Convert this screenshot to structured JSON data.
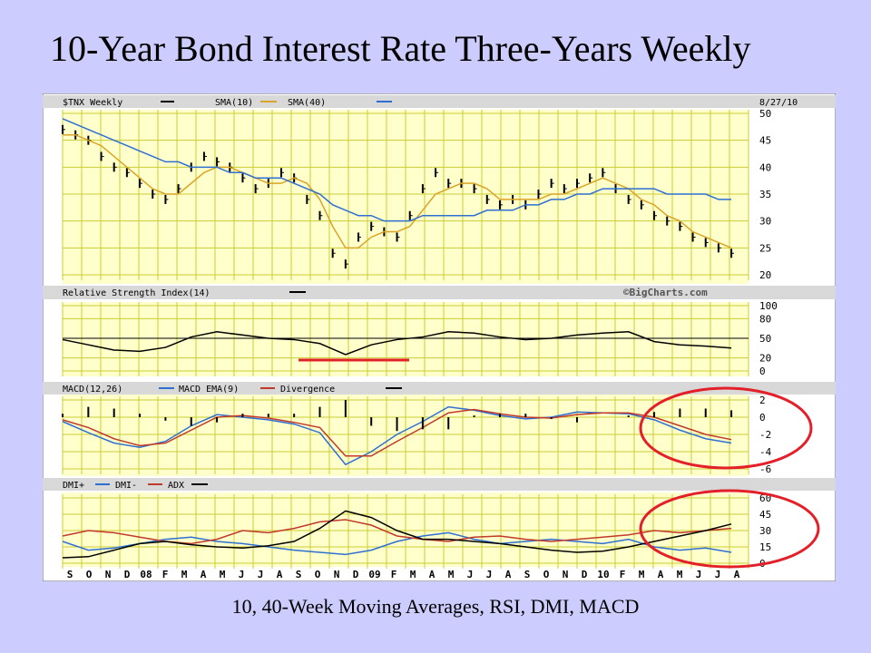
{
  "slide": {
    "title": "10-Year Bond Interest Rate Three-Years Weekly",
    "caption": "10, 40-Week Moving Averages, RSI, DMI, MACD"
  },
  "colors": {
    "slide_bg": "#ccccff",
    "panel_bg": "#ffffcc",
    "header_bg": "#d8d8d8",
    "grid": "#cccc33",
    "sma10": "#d9a427",
    "sma40": "#2e6fd1",
    "emphasis": "#e3202a"
  },
  "chart_data": [
    {
      "type": "line",
      "title": "$TNX Weekly",
      "legend": [
        {
          "name": "$TNX Weekly",
          "color": "#000000"
        },
        {
          "name": "SMA(10)",
          "color": "#d9a427"
        },
        {
          "name": "SMA(40)",
          "color": "#2e6fd1"
        }
      ],
      "date_label": "8/27/10",
      "ylim": [
        20,
        50
      ],
      "yticks": [
        50,
        45,
        40,
        35,
        30,
        25,
        20
      ],
      "grid": true,
      "series": [
        {
          "name": "$TNX Weekly",
          "x": [
            0,
            3,
            6,
            9,
            12,
            15,
            18,
            21,
            24,
            27,
            30,
            33,
            36,
            39,
            42,
            45,
            48,
            51,
            54,
            57,
            60,
            63,
            66,
            69,
            72,
            75,
            78,
            81,
            84,
            87,
            90,
            93,
            96,
            99,
            102,
            105,
            108,
            111,
            114,
            117,
            120,
            123,
            126,
            129,
            132,
            135,
            138,
            141,
            144,
            147,
            150,
            153,
            156
          ],
          "values": [
            47,
            46,
            45,
            42,
            40,
            39,
            37,
            35,
            34,
            36,
            40,
            42,
            41,
            40,
            38,
            36,
            37,
            39,
            38,
            34,
            31,
            24,
            22,
            27,
            29,
            28,
            27,
            31,
            36,
            39,
            37,
            37,
            36,
            34,
            33,
            34,
            33,
            35,
            37,
            36,
            37,
            38,
            39,
            36,
            34,
            33,
            31,
            30,
            29,
            27,
            26,
            25,
            24
          ]
        },
        {
          "name": "SMA(10)",
          "x": [
            0,
            3,
            6,
            9,
            12,
            15,
            18,
            21,
            24,
            27,
            30,
            33,
            36,
            39,
            42,
            45,
            48,
            51,
            54,
            57,
            60,
            63,
            66,
            69,
            72,
            75,
            78,
            81,
            84,
            87,
            90,
            93,
            96,
            99,
            102,
            105,
            108,
            111,
            114,
            117,
            120,
            123,
            126,
            129,
            132,
            135,
            138,
            141,
            144,
            147,
            150,
            153,
            156
          ],
          "values": [
            46,
            46,
            45,
            44,
            42,
            40,
            38,
            36,
            35,
            35,
            37,
            39,
            40,
            40,
            39,
            38,
            37,
            37,
            38,
            37,
            34,
            29,
            25,
            25,
            27,
            28,
            28,
            29,
            32,
            35,
            36,
            37,
            37,
            36,
            34,
            34,
            34,
            34,
            35,
            35,
            36,
            37,
            38,
            37,
            36,
            34,
            33,
            31,
            30,
            28,
            27,
            26,
            25
          ]
        },
        {
          "name": "SMA(40)",
          "x": [
            0,
            3,
            6,
            9,
            12,
            15,
            18,
            21,
            24,
            27,
            30,
            33,
            36,
            39,
            42,
            45,
            48,
            51,
            54,
            57,
            60,
            63,
            66,
            69,
            72,
            75,
            78,
            81,
            84,
            87,
            90,
            93,
            96,
            99,
            102,
            105,
            108,
            111,
            114,
            117,
            120,
            123,
            126,
            129,
            132,
            135,
            138,
            141,
            144,
            147,
            150,
            153,
            156
          ],
          "values": [
            49,
            48,
            47,
            46,
            45,
            44,
            43,
            42,
            41,
            41,
            40,
            40,
            40,
            39,
            39,
            38,
            38,
            38,
            37,
            36,
            35,
            33,
            32,
            31,
            31,
            30,
            30,
            30,
            31,
            31,
            31,
            31,
            31,
            32,
            32,
            32,
            33,
            33,
            34,
            34,
            35,
            35,
            36,
            36,
            36,
            36,
            36,
            35,
            35,
            35,
            35,
            34,
            34
          ]
        }
      ]
    },
    {
      "type": "line",
      "title": "Relative Strength Index(14)",
      "source_label": "©BigCharts.com",
      "ylim": [
        0,
        100
      ],
      "yticks": [
        100,
        80,
        50,
        20,
        0
      ],
      "reference_line": 50,
      "series": [
        {
          "name": "Relative Strength Index(14)",
          "x": [
            0,
            6,
            12,
            18,
            24,
            30,
            36,
            42,
            48,
            54,
            60,
            66,
            72,
            78,
            84,
            90,
            96,
            102,
            108,
            114,
            120,
            126,
            132,
            138,
            144,
            150,
            156
          ],
          "values": [
            48,
            40,
            32,
            30,
            36,
            52,
            60,
            55,
            50,
            48,
            42,
            25,
            40,
            48,
            52,
            60,
            58,
            52,
            48,
            50,
            55,
            58,
            60,
            45,
            40,
            38,
            35
          ]
        }
      ]
    },
    {
      "type": "line",
      "title": "MACD(12,26)",
      "legend": [
        {
          "name": "MACD(12,26)",
          "color": "#000000"
        },
        {
          "name": "MACD EMA(9)",
          "color": "#2e6fd1"
        },
        {
          "name": "Divergence",
          "color": "#c0392b"
        }
      ],
      "ylim": [
        -6,
        2
      ],
      "yticks": [
        2,
        0,
        -2,
        -4,
        -6
      ],
      "series": [
        {
          "name": "MACD EMA(9)",
          "x": [
            0,
            6,
            12,
            18,
            24,
            30,
            36,
            42,
            48,
            54,
            60,
            66,
            72,
            78,
            84,
            90,
            96,
            102,
            108,
            114,
            120,
            126,
            132,
            138,
            144,
            150,
            156
          ],
          "values": [
            -0.5,
            -1.8,
            -3,
            -3.5,
            -2.8,
            -1,
            0.3,
            0,
            -0.3,
            -0.8,
            -1.8,
            -5.5,
            -4,
            -2,
            -0.5,
            1.2,
            0.8,
            0.2,
            -0.2,
            0,
            0.6,
            0.5,
            0.4,
            -0.3,
            -1.5,
            -2.5,
            -3
          ]
        },
        {
          "name": "Divergence",
          "x": [
            0,
            6,
            12,
            18,
            24,
            30,
            36,
            42,
            48,
            54,
            60,
            66,
            72,
            78,
            84,
            90,
            96,
            102,
            108,
            114,
            120,
            126,
            132,
            138,
            144,
            150,
            156
          ],
          "values": [
            -0.3,
            -1.2,
            -2.5,
            -3.3,
            -3,
            -1.5,
            0,
            0.2,
            -0.1,
            -0.6,
            -1.2,
            -4.5,
            -4.5,
            -2.8,
            -1.2,
            0.5,
            0.9,
            0.4,
            0,
            -0.1,
            0.3,
            0.5,
            0.5,
            0,
            -1,
            -2,
            -2.6
          ]
        }
      ]
    },
    {
      "type": "line",
      "title": "DMI",
      "legend": [
        {
          "name": "DMI+",
          "color": "#2e6fd1"
        },
        {
          "name": "DMI-",
          "color": "#c0392b"
        },
        {
          "name": "ADX",
          "color": "#000000"
        }
      ],
      "ylim": [
        0,
        60
      ],
      "yticks": [
        60,
        45,
        30,
        15,
        0
      ],
      "x_tick_labels": [
        "S",
        "O",
        "N",
        "D",
        "08",
        "F",
        "M",
        "A",
        "M",
        "J",
        "J",
        "A",
        "S",
        "O",
        "N",
        "D",
        "09",
        "F",
        "M",
        "A",
        "M",
        "J",
        "J",
        "A",
        "S",
        "O",
        "N",
        "D",
        "10",
        "F",
        "M",
        "A",
        "M",
        "J",
        "J",
        "A"
      ],
      "series": [
        {
          "name": "DMI+",
          "x": [
            0,
            6,
            12,
            18,
            24,
            30,
            36,
            42,
            48,
            54,
            60,
            66,
            72,
            78,
            84,
            90,
            96,
            102,
            108,
            114,
            120,
            126,
            132,
            138,
            144,
            150,
            156
          ],
          "values": [
            20,
            12,
            14,
            18,
            22,
            24,
            20,
            18,
            15,
            12,
            10,
            8,
            12,
            20,
            25,
            28,
            22,
            18,
            20,
            22,
            20,
            18,
            22,
            15,
            12,
            14,
            10
          ]
        },
        {
          "name": "DMI-",
          "x": [
            0,
            6,
            12,
            18,
            24,
            30,
            36,
            42,
            48,
            54,
            60,
            66,
            72,
            78,
            84,
            90,
            96,
            102,
            108,
            114,
            120,
            126,
            132,
            138,
            144,
            150,
            156
          ],
          "values": [
            25,
            30,
            28,
            24,
            20,
            18,
            22,
            30,
            28,
            32,
            38,
            40,
            35,
            25,
            22,
            20,
            24,
            25,
            22,
            20,
            22,
            24,
            26,
            30,
            28,
            30,
            32
          ]
        },
        {
          "name": "ADX",
          "x": [
            0,
            6,
            12,
            18,
            24,
            30,
            36,
            42,
            48,
            54,
            60,
            66,
            72,
            78,
            84,
            90,
            96,
            102,
            108,
            114,
            120,
            126,
            132,
            138,
            144,
            150,
            156
          ],
          "values": [
            5,
            6,
            12,
            18,
            20,
            17,
            15,
            14,
            16,
            20,
            32,
            48,
            42,
            30,
            22,
            22,
            20,
            18,
            15,
            12,
            10,
            11,
            15,
            20,
            25,
            30,
            36
          ]
        }
      ]
    }
  ]
}
